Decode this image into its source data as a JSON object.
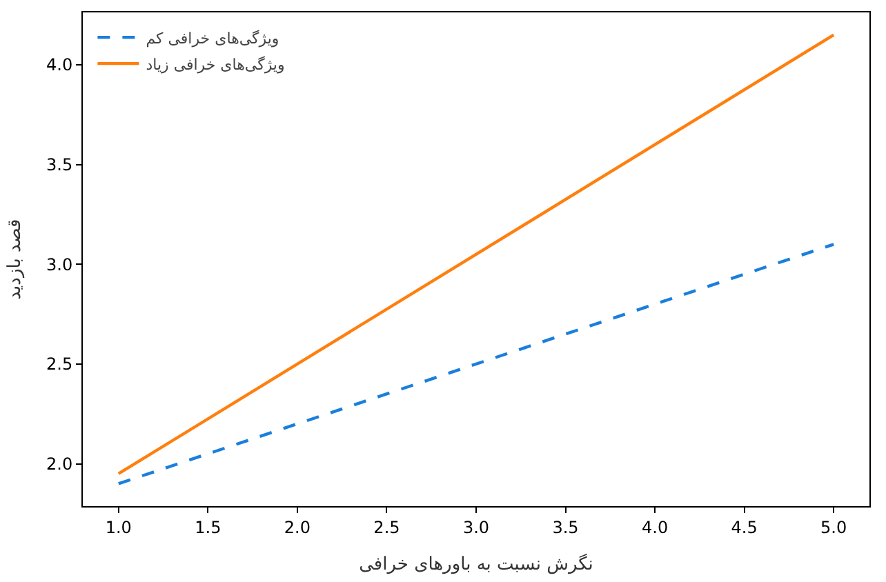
{
  "chart_data": {
    "type": "line",
    "xlabel": "نگرش نسبت به باورهای خرافی",
    "ylabel": "قصد بازدید",
    "x": [
      1,
      5
    ],
    "series": [
      {
        "name": "ویژگی‌های خرافی کم",
        "color": "#1a7fdc",
        "values": [
          1.9,
          3.1
        ],
        "line_style": "dashed"
      },
      {
        "name": "ویژگی‌های خرافی زیاد",
        "color": "#ff7f0e",
        "values": [
          1.95,
          4.15
        ],
        "line_style": "solid"
      }
    ],
    "xlim": [
      0.8,
      5.2
    ],
    "ylim": [
      1.7875,
      4.2625
    ],
    "xticks": [
      {
        "value": 1,
        "label": "1.0"
      },
      {
        "value": 1.5,
        "label": "1.5"
      },
      {
        "value": 2,
        "label": "2.0"
      },
      {
        "value": 2.5,
        "label": "2.5"
      },
      {
        "value": 3,
        "label": "3.0"
      },
      {
        "value": 3.5,
        "label": "3.5"
      },
      {
        "value": 4,
        "label": "4.0"
      },
      {
        "value": 4.5,
        "label": "4.5"
      },
      {
        "value": 5,
        "label": "5.0"
      }
    ],
    "yticks": [
      {
        "value": 2,
        "label": "2.0"
      },
      {
        "value": 2.5,
        "label": "2.5"
      },
      {
        "value": 3,
        "label": "3.0"
      },
      {
        "value": 3.5,
        "label": "3.5"
      },
      {
        "value": 4,
        "label": "4.0"
      }
    ],
    "legend": "top left"
  }
}
